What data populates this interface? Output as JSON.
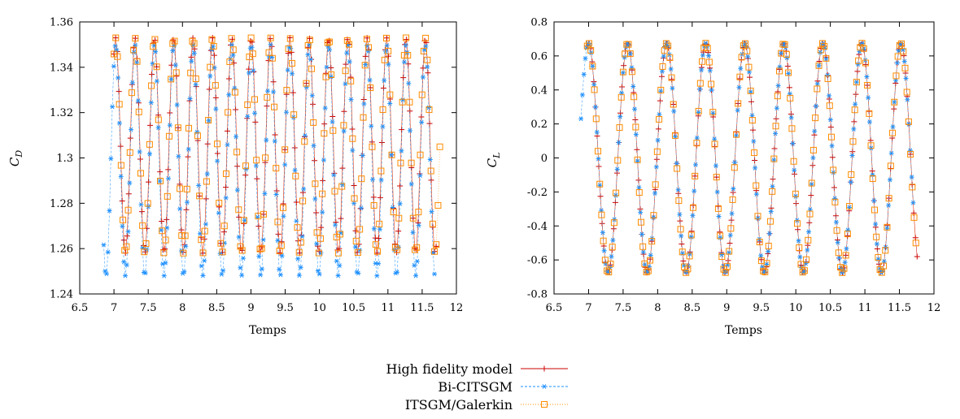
{
  "chart_data": [
    {
      "type": "line",
      "panel": "left",
      "title": "",
      "xlabel": "Temps",
      "ylabel_main": "C",
      "ylabel_sub": "D",
      "xlim": [
        6.5,
        12
      ],
      "ylim": [
        1.24,
        1.36
      ],
      "xticks": [
        "6.5",
        "7",
        "7.5",
        "8",
        "8.5",
        "9",
        "9.5",
        "10",
        "10.5",
        "11",
        "11.5",
        "12"
      ],
      "yticks": [
        "1.24",
        "1.26",
        "1.28",
        "1.3",
        "1.32",
        "1.34",
        "1.36"
      ],
      "signal": {
        "mean": 1.3055,
        "amplitude": 0.0475,
        "period": 0.2826,
        "phase_peak_t": 7.025,
        "t_start": 6.85,
        "t_end": 11.76
      },
      "series": [
        {
          "name": "High fidelity model",
          "color": "#cc0000",
          "marker": "plus",
          "t_start": 7.0,
          "t_end": 11.72,
          "dt": 0.024,
          "peak": 1.353,
          "trough": 1.258
        },
        {
          "name": "Bi-CITSGM",
          "color": "#1e90ff",
          "marker": "asterisk",
          "t_start": 6.85,
          "t_end": 11.7,
          "dt": 0.021,
          "peak": 1.35,
          "trough": 1.248
        },
        {
          "name": "ITSGM/Galerkin",
          "color": "#ff8c00",
          "marker": "square",
          "t_start": 7.0,
          "t_end": 11.76,
          "dt": 0.026,
          "peak": 1.353,
          "trough": 1.258
        }
      ]
    },
    {
      "type": "line",
      "panel": "right",
      "title": "",
      "xlabel": "Temps",
      "ylabel_main": "C",
      "ylabel_sub": "L",
      "xlim": [
        6.5,
        12
      ],
      "ylim": [
        -0.8,
        0.8
      ],
      "xticks": [
        "6.5",
        "7",
        "7.5",
        "8",
        "8.5",
        "9",
        "9.5",
        "10",
        "10.5",
        "11",
        "11.5",
        "12"
      ],
      "yticks": [
        "-0.8",
        "-0.6",
        "-0.4",
        "-0.2",
        "0",
        "0.2",
        "0.4",
        "0.6",
        "0.8"
      ],
      "signal": {
        "mean": 0.0,
        "amplitude": 0.675,
        "period": 0.5652,
        "phase_peak_t": 7.0
      },
      "series": [
        {
          "name": "High fidelity model",
          "color": "#cc0000",
          "marker": "plus",
          "t_start": 6.98,
          "t_end": 11.76,
          "dt": 0.024
        },
        {
          "name": "Bi-CITSGM",
          "color": "#1e90ff",
          "marker": "asterisk",
          "t_start": 6.89,
          "t_end": 11.7,
          "dt": 0.021
        },
        {
          "name": "ITSGM/Galerkin",
          "color": "#ff8c00",
          "marker": "square",
          "t_start": 6.98,
          "t_end": 11.76,
          "dt": 0.026
        }
      ]
    }
  ],
  "legend": {
    "placement": "bottom-center",
    "entries": [
      {
        "label": "High fidelity model",
        "color": "#cc0000",
        "marker": "plus",
        "dash": ""
      },
      {
        "label": "Bi-CITSGM",
        "color": "#1e90ff",
        "marker": "asterisk",
        "dash": "3,2"
      },
      {
        "label": "ITSGM/Galerkin",
        "color": "#ff8c00",
        "marker": "square",
        "dash": "1,2"
      }
    ]
  }
}
